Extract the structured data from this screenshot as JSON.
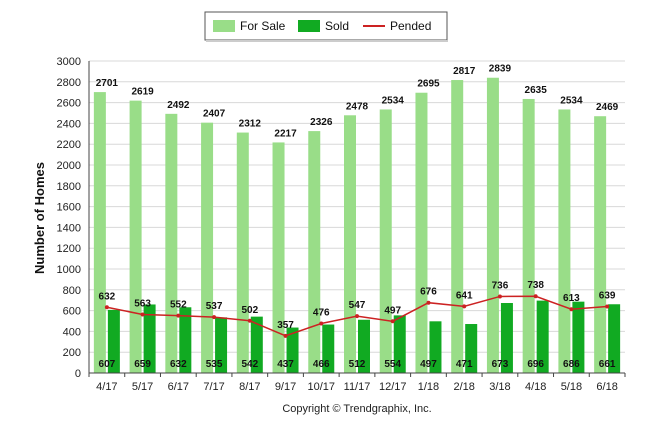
{
  "chart_data": {
    "type": "bar",
    "title": "",
    "xlabel": "",
    "ylabel": "Number of Homes",
    "ylim": [
      0,
      3000
    ],
    "ytick_step": 200,
    "grid": true,
    "legend_position": "top-center",
    "categories": [
      "4/17",
      "5/17",
      "6/17",
      "7/17",
      "8/17",
      "9/17",
      "10/17",
      "11/17",
      "12/17",
      "1/18",
      "2/18",
      "3/18",
      "4/18",
      "5/18",
      "6/18"
    ],
    "series": [
      {
        "name": "For Sale",
        "kind": "bar",
        "color": "#99dd88",
        "values": [
          2701,
          2619,
          2492,
          2407,
          2312,
          2217,
          2326,
          2478,
          2534,
          2695,
          2817,
          2839,
          2635,
          2534,
          2469
        ]
      },
      {
        "name": "Sold",
        "kind": "bar",
        "color": "#11aa22",
        "values": [
          607,
          659,
          632,
          535,
          542,
          437,
          466,
          512,
          554,
          497,
          471,
          673,
          696,
          686,
          661
        ]
      },
      {
        "name": "Pended",
        "kind": "line",
        "color": "#cc2222",
        "values": [
          632,
          563,
          552,
          537,
          502,
          357,
          476,
          547,
          497,
          676,
          641,
          736,
          738,
          613,
          639
        ]
      }
    ]
  },
  "footer": {
    "copyright": "Copyright © Trendgraphix, Inc."
  }
}
